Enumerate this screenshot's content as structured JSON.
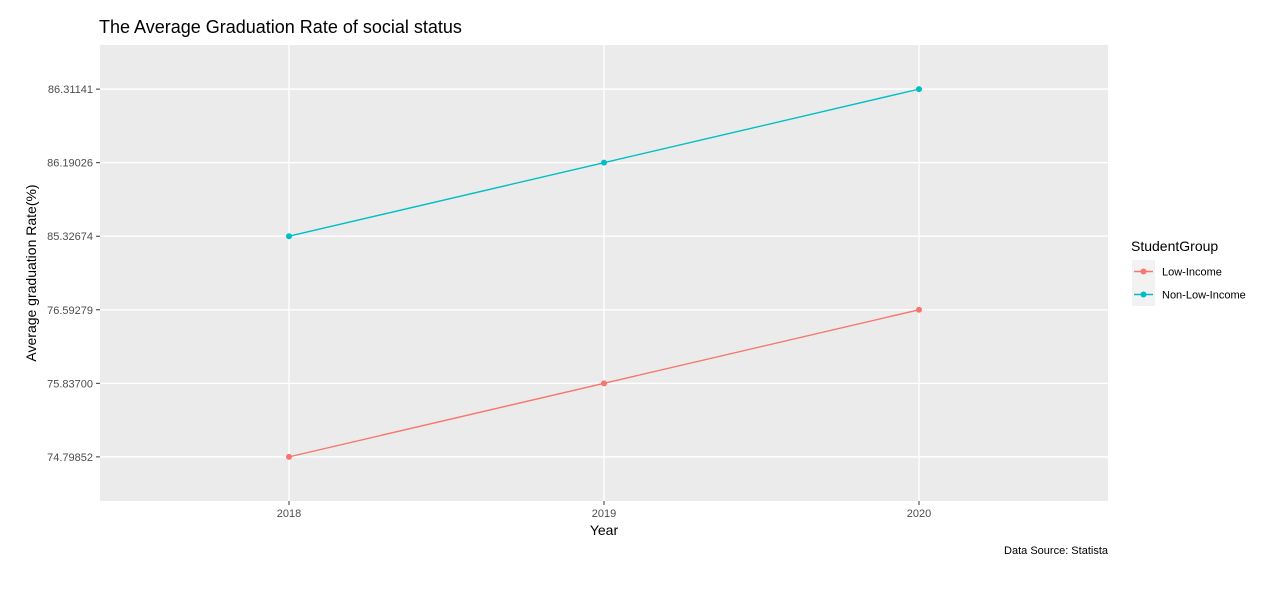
{
  "chart_data": {
    "type": "line",
    "title": "The Average Graduation Rate of social status",
    "xlabel": "Year",
    "ylabel": "Average graduation Rate(%)",
    "caption": "Data Source: Statista",
    "x": [
      "2018",
      "2019",
      "2020"
    ],
    "y_tick_labels": [
      "74.79852",
      "75.83700",
      "76.59279",
      "85.32674",
      "86.19026",
      "86.31141"
    ],
    "y_scale": "categorical (discrete factor levels, evenly spaced)",
    "grid": true,
    "legend": {
      "title": "StudentGroup",
      "placement": "right"
    },
    "series": [
      {
        "name": "Low-Income",
        "color": "#F8766D",
        "values": [
          "74.79852",
          "75.83700",
          "76.59279"
        ]
      },
      {
        "name": "Non-Low-Income",
        "color": "#00BFC4",
        "values": [
          "85.32674",
          "86.19026",
          "86.31141"
        ]
      }
    ],
    "panel_background": "#EBEBEB",
    "grid_color": "#FFFFFF"
  }
}
